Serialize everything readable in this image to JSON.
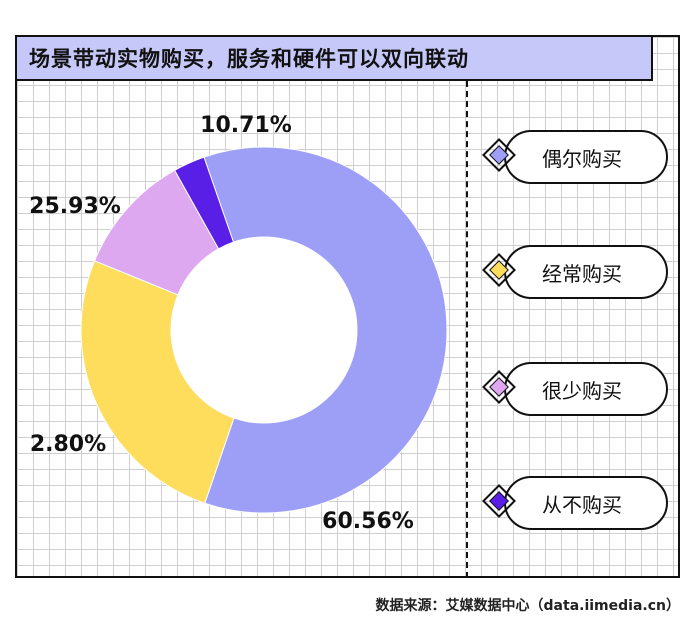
{
  "title": "场景带动实物购买，服务和硬件可以双向联动",
  "source": "数据来源：艾媒数据中心（data.iimedia.cn）",
  "chart_data": {
    "type": "pie",
    "donut": true,
    "slices": [
      {
        "label": "偶尔购买",
        "value": 60.56,
        "display": "60.56%",
        "color": "#9c9ff5"
      },
      {
        "label": "经常购买",
        "value": 25.93,
        "display": "25.93%",
        "color": "#fedc5c"
      },
      {
        "label": "很少购买",
        "value": 10.71,
        "display": "10.71%",
        "color": "#dda8ef"
      },
      {
        "label": "从不购买",
        "value": 2.8,
        "display": "2.80%",
        "color": "#5a1fe6"
      }
    ]
  }
}
